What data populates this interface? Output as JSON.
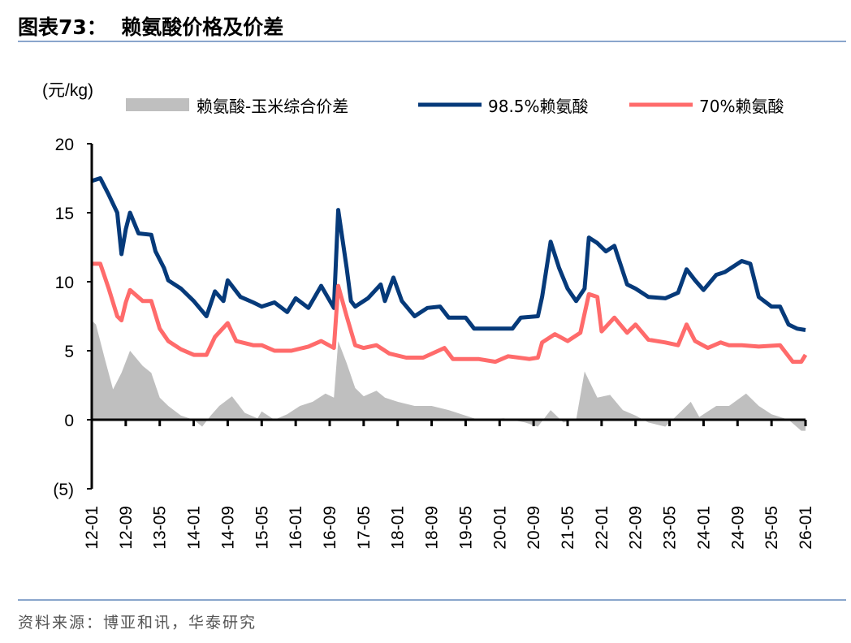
{
  "header": {
    "title": "图表73：  赖氨酸价格及价差"
  },
  "footer": {
    "source": "资料来源：博亚和讯，华泰研究"
  },
  "colors": {
    "spread": "#bfbfbf",
    "lys98": "#063a7a",
    "lys70": "#ff6b6b",
    "rule": "#8aa6cc"
  },
  "chart_data": {
    "type": "line",
    "title": "",
    "unit_label": "(元/kg)",
    "xlabel": "",
    "ylabel": "",
    "ylim": [
      -5,
      20
    ],
    "y_ticks": [
      20,
      15,
      10,
      5,
      0,
      -5
    ],
    "y_tick_labels": [
      "20",
      "15",
      "10",
      "5",
      "0",
      "(5)"
    ],
    "x_ticks": [
      "12-01",
      "12-09",
      "13-05",
      "14-01",
      "14-09",
      "15-05",
      "16-01",
      "16-09",
      "17-05",
      "18-01",
      "18-09",
      "19-05",
      "20-01",
      "20-09",
      "21-05",
      "22-01",
      "22-09",
      "23-05",
      "24-01",
      "24-09",
      "25-05",
      "26-01"
    ],
    "grid": false,
    "legend": "top",
    "series": [
      {
        "name": "赖氨酸-玉米综合价差",
        "kind": "area",
        "color": "#bfbfbf",
        "points": [
          [
            "12-01",
            7.2
          ],
          [
            "12-02",
            6.9
          ],
          [
            "12-04",
            4.5
          ],
          [
            "12-06",
            2.2
          ],
          [
            "12-08",
            3.4
          ],
          [
            "12-10",
            5.0
          ],
          [
            "13-01",
            3.9
          ],
          [
            "13-03",
            3.4
          ],
          [
            "13-05",
            1.6
          ],
          [
            "13-07",
            1.0
          ],
          [
            "13-10",
            0.3
          ],
          [
            "14-01",
            0
          ],
          [
            "14-03",
            -0.5
          ],
          [
            "14-05",
            0.3
          ],
          [
            "14-07",
            1.0
          ],
          [
            "14-10",
            1.7
          ],
          [
            "15-01",
            0.5
          ],
          [
            "15-04",
            0.1
          ],
          [
            "15-05",
            0.6
          ],
          [
            "15-08",
            0
          ],
          [
            "15-11",
            0.4
          ],
          [
            "16-02",
            1.0
          ],
          [
            "16-05",
            1.3
          ],
          [
            "16-08",
            1.9
          ],
          [
            "16-10",
            1.6
          ],
          [
            "16-11",
            5.7
          ],
          [
            "17-01",
            4.1
          ],
          [
            "17-03",
            2.3
          ],
          [
            "17-05",
            1.7
          ],
          [
            "17-08",
            2.1
          ],
          [
            "17-10",
            1.6
          ],
          [
            "18-01",
            1.3
          ],
          [
            "18-05",
            1.0
          ],
          [
            "18-09",
            1.0
          ],
          [
            "19-01",
            0.7
          ],
          [
            "19-04",
            0.4
          ],
          [
            "19-08",
            0
          ],
          [
            "20-02",
            0.1
          ],
          [
            "20-07",
            -0.2
          ],
          [
            "20-10",
            -0.5
          ],
          [
            "21-01",
            0.7
          ],
          [
            "21-04",
            -0.2
          ],
          [
            "21-07",
            0
          ],
          [
            "21-09",
            3.5
          ],
          [
            "21-12",
            1.6
          ],
          [
            "22-03",
            1.8
          ],
          [
            "22-06",
            0.7
          ],
          [
            "22-09",
            0.3
          ],
          [
            "22-12",
            -0.2
          ],
          [
            "23-04",
            -0.5
          ],
          [
            "23-08",
            0.7
          ],
          [
            "23-10",
            1.3
          ],
          [
            "23-12",
            0.2
          ],
          [
            "24-04",
            1.0
          ],
          [
            "24-07",
            1.0
          ],
          [
            "24-11",
            1.9
          ],
          [
            "25-02",
            1.0
          ],
          [
            "25-05",
            0.4
          ],
          [
            "25-09",
            0
          ],
          [
            "25-12",
            -0.8
          ],
          [
            "26-01",
            -0.8
          ]
        ]
      },
      {
        "name": "98.5%赖氨酸",
        "kind": "line",
        "color": "#063a7a",
        "points": [
          [
            "12-01",
            17.3
          ],
          [
            "12-03",
            17.5
          ],
          [
            "12-05",
            16.3
          ],
          [
            "12-07",
            15.0
          ],
          [
            "12-08",
            12.0
          ],
          [
            "12-09",
            13.8
          ],
          [
            "12-10",
            15.0
          ],
          [
            "12-12",
            13.5
          ],
          [
            "13-03",
            13.4
          ],
          [
            "13-04",
            12.2
          ],
          [
            "13-06",
            11.0
          ],
          [
            "13-07",
            10.1
          ],
          [
            "13-10",
            9.5
          ],
          [
            "14-01",
            8.6
          ],
          [
            "14-04",
            7.5
          ],
          [
            "14-06",
            9.3
          ],
          [
            "14-08",
            8.6
          ],
          [
            "14-09",
            10.1
          ],
          [
            "14-12",
            8.9
          ],
          [
            "15-03",
            8.5
          ],
          [
            "15-05",
            8.2
          ],
          [
            "15-08",
            8.5
          ],
          [
            "15-11",
            7.8
          ],
          [
            "16-01",
            8.8
          ],
          [
            "16-04",
            8.1
          ],
          [
            "16-07",
            9.7
          ],
          [
            "16-10",
            8.1
          ],
          [
            "16-11",
            15.2
          ],
          [
            "17-01",
            11.0
          ],
          [
            "17-02",
            8.6
          ],
          [
            "17-03",
            8.2
          ],
          [
            "17-06",
            8.8
          ],
          [
            "17-09",
            9.8
          ],
          [
            "17-10",
            8.6
          ],
          [
            "17-12",
            10.3
          ],
          [
            "18-02",
            8.6
          ],
          [
            "18-05",
            7.5
          ],
          [
            "18-08",
            8.1
          ],
          [
            "18-11",
            8.2
          ],
          [
            "19-01",
            7.4
          ],
          [
            "19-05",
            7.4
          ],
          [
            "19-07",
            6.6
          ],
          [
            "20-04",
            6.6
          ],
          [
            "20-06",
            7.4
          ],
          [
            "20-10",
            7.5
          ],
          [
            "20-11",
            8.9
          ],
          [
            "21-01",
            12.9
          ],
          [
            "21-03",
            11.0
          ],
          [
            "21-05",
            9.5
          ],
          [
            "21-07",
            8.6
          ],
          [
            "21-09",
            9.5
          ],
          [
            "21-10",
            13.2
          ],
          [
            "21-12",
            12.8
          ],
          [
            "22-02",
            12.2
          ],
          [
            "22-04",
            12.6
          ],
          [
            "22-07",
            9.8
          ],
          [
            "22-09",
            9.5
          ],
          [
            "22-12",
            8.9
          ],
          [
            "23-04",
            8.8
          ],
          [
            "23-07",
            9.2
          ],
          [
            "23-09",
            10.9
          ],
          [
            "23-11",
            10.1
          ],
          [
            "24-01",
            9.4
          ],
          [
            "24-04",
            10.5
          ],
          [
            "24-06",
            10.7
          ],
          [
            "24-10",
            11.5
          ],
          [
            "24-12",
            11.3
          ],
          [
            "25-02",
            8.9
          ],
          [
            "25-05",
            8.2
          ],
          [
            "25-07",
            8.2
          ],
          [
            "25-09",
            6.9
          ],
          [
            "25-11",
            6.6
          ],
          [
            "26-01",
            6.5
          ]
        ]
      },
      {
        "name": "70%赖氨酸",
        "kind": "line",
        "color": "#ff6b6b",
        "points": [
          [
            "12-01",
            11.3
          ],
          [
            "12-03",
            11.3
          ],
          [
            "12-05",
            9.5
          ],
          [
            "12-07",
            7.5
          ],
          [
            "12-08",
            7.2
          ],
          [
            "12-09",
            8.5
          ],
          [
            "12-10",
            9.4
          ],
          [
            "13-01",
            8.6
          ],
          [
            "13-03",
            8.6
          ],
          [
            "13-05",
            6.6
          ],
          [
            "13-07",
            5.7
          ],
          [
            "13-10",
            5.1
          ],
          [
            "14-01",
            4.7
          ],
          [
            "14-04",
            4.7
          ],
          [
            "14-06",
            6.0
          ],
          [
            "14-09",
            7.0
          ],
          [
            "14-11",
            5.7
          ],
          [
            "15-03",
            5.4
          ],
          [
            "15-05",
            5.4
          ],
          [
            "15-08",
            5.0
          ],
          [
            "15-12",
            5.0
          ],
          [
            "16-04",
            5.3
          ],
          [
            "16-07",
            5.7
          ],
          [
            "16-10",
            5.2
          ],
          [
            "16-11",
            9.7
          ],
          [
            "17-01",
            7.5
          ],
          [
            "17-03",
            5.4
          ],
          [
            "17-05",
            5.2
          ],
          [
            "17-08",
            5.4
          ],
          [
            "17-11",
            4.8
          ],
          [
            "18-03",
            4.5
          ],
          [
            "18-07",
            4.5
          ],
          [
            "18-12",
            5.2
          ],
          [
            "19-02",
            4.4
          ],
          [
            "19-08",
            4.4
          ],
          [
            "19-12",
            4.2
          ],
          [
            "20-03",
            4.6
          ],
          [
            "20-08",
            4.4
          ],
          [
            "20-10",
            4.5
          ],
          [
            "20-11",
            5.6
          ],
          [
            "21-02",
            6.2
          ],
          [
            "21-05",
            5.7
          ],
          [
            "21-08",
            6.3
          ],
          [
            "21-10",
            9.1
          ],
          [
            "21-12",
            8.9
          ],
          [
            "22-01",
            6.4
          ],
          [
            "22-04",
            7.4
          ],
          [
            "22-07",
            6.3
          ],
          [
            "22-09",
            6.9
          ],
          [
            "22-12",
            5.8
          ],
          [
            "23-04",
            5.6
          ],
          [
            "23-07",
            5.4
          ],
          [
            "23-09",
            6.9
          ],
          [
            "23-11",
            5.7
          ],
          [
            "24-02",
            5.2
          ],
          [
            "24-05",
            5.6
          ],
          [
            "24-07",
            5.4
          ],
          [
            "24-10",
            5.4
          ],
          [
            "25-02",
            5.3
          ],
          [
            "25-07",
            5.4
          ],
          [
            "25-10",
            4.2
          ],
          [
            "25-12",
            4.2
          ],
          [
            "26-01",
            4.7
          ]
        ]
      }
    ]
  }
}
